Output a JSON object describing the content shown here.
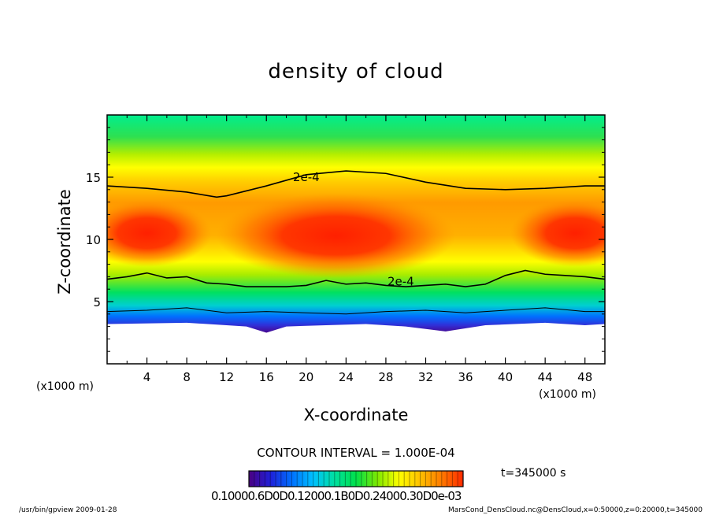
{
  "chart_data": {
    "type": "heatmap",
    "title": "density of cloud",
    "xlabel": "X-coordinate",
    "ylabel": "Z-coordinate",
    "x_unit_left": "(x1000 m)",
    "x_unit_right": "(x1000 m)",
    "xlim": [
      0,
      50
    ],
    "ylim": [
      0,
      20
    ],
    "x_ticks": [
      4,
      8,
      12,
      16,
      20,
      24,
      28,
      32,
      36,
      40,
      44,
      48
    ],
    "y_ticks": [
      5,
      10,
      15
    ],
    "contour_label": "2e-4",
    "contour_interval_text": "CONTOUR INTERVAL = 1.000E-04",
    "time_text": "t=345000 s",
    "colorbar_tick_text": "0.10000.6D0D0.12000.1B0D0.24000.30D0e-03",
    "contours": [
      {
        "level": "2e-4",
        "points": [
          [
            0,
            14.3
          ],
          [
            4,
            14.1
          ],
          [
            8,
            13.8
          ],
          [
            11,
            13.4
          ],
          [
            12,
            13.5
          ],
          [
            16,
            14.3
          ],
          [
            20,
            15.2
          ],
          [
            24,
            15.5
          ],
          [
            28,
            15.3
          ],
          [
            32,
            14.6
          ],
          [
            36,
            14.1
          ],
          [
            40,
            14.0
          ],
          [
            44,
            14.1
          ],
          [
            48,
            14.3
          ],
          [
            50,
            14.3
          ]
        ]
      },
      {
        "level": "2e-4",
        "points": [
          [
            0,
            6.8
          ],
          [
            2,
            7.0
          ],
          [
            4,
            7.3
          ],
          [
            6,
            6.9
          ],
          [
            8,
            7.0
          ],
          [
            10,
            6.5
          ],
          [
            12,
            6.4
          ],
          [
            14,
            6.2
          ],
          [
            16,
            6.2
          ],
          [
            18,
            6.2
          ],
          [
            20,
            6.3
          ],
          [
            22,
            6.7
          ],
          [
            24,
            6.4
          ],
          [
            26,
            6.5
          ],
          [
            28,
            6.3
          ],
          [
            30,
            6.2
          ],
          [
            32,
            6.3
          ],
          [
            34,
            6.4
          ],
          [
            36,
            6.2
          ],
          [
            38,
            6.4
          ],
          [
            40,
            7.1
          ],
          [
            42,
            7.5
          ],
          [
            44,
            7.2
          ],
          [
            46,
            7.1
          ],
          [
            48,
            7.0
          ],
          [
            50,
            6.8
          ]
        ]
      },
      {
        "level": "1e-4",
        "points": [
          [
            0,
            4.2
          ],
          [
            4,
            4.3
          ],
          [
            8,
            4.5
          ],
          [
            12,
            4.1
          ],
          [
            16,
            4.2
          ],
          [
            20,
            4.1
          ],
          [
            24,
            4.0
          ],
          [
            28,
            4.2
          ],
          [
            32,
            4.3
          ],
          [
            36,
            4.1
          ],
          [
            40,
            4.3
          ],
          [
            44,
            4.5
          ],
          [
            48,
            4.2
          ],
          [
            50,
            4.2
          ]
        ]
      }
    ],
    "field_structure": {
      "cloud_base_z": [
        [
          0,
          3.2
        ],
        [
          8,
          3.3
        ],
        [
          14,
          3.0
        ],
        [
          16,
          2.5
        ],
        [
          18,
          3.0
        ],
        [
          22,
          3.1
        ],
        [
          26,
          3.2
        ],
        [
          30,
          3.0
        ],
        [
          34,
          2.6
        ],
        [
          38,
          3.1
        ],
        [
          44,
          3.3
        ],
        [
          48,
          3.1
        ],
        [
          50,
          3.2
        ]
      ],
      "maxima": [
        {
          "x": 23,
          "z": 10.3,
          "rx": 12,
          "rz": 3.4
        },
        {
          "x": 4,
          "z": 10.5,
          "rx": 6.5,
          "rz": 2.7
        },
        {
          "x": 47,
          "z": 10.5,
          "rx": 6.5,
          "rz": 2.7
        }
      ]
    },
    "colorbar": [
      "#4b0082",
      "#1f1fd8",
      "#0070ff",
      "#00c0ff",
      "#00e0a0",
      "#00e04a",
      "#7ee800",
      "#ffff00",
      "#ffc000",
      "#ff7a00",
      "#ff2a00"
    ]
  },
  "footer": {
    "left": "/usr/bin/gpview   2009-01-28",
    "right": "MarsCond_DensCloud.nc@DensCloud,x=0:50000,z=0:20000,t=345000"
  }
}
